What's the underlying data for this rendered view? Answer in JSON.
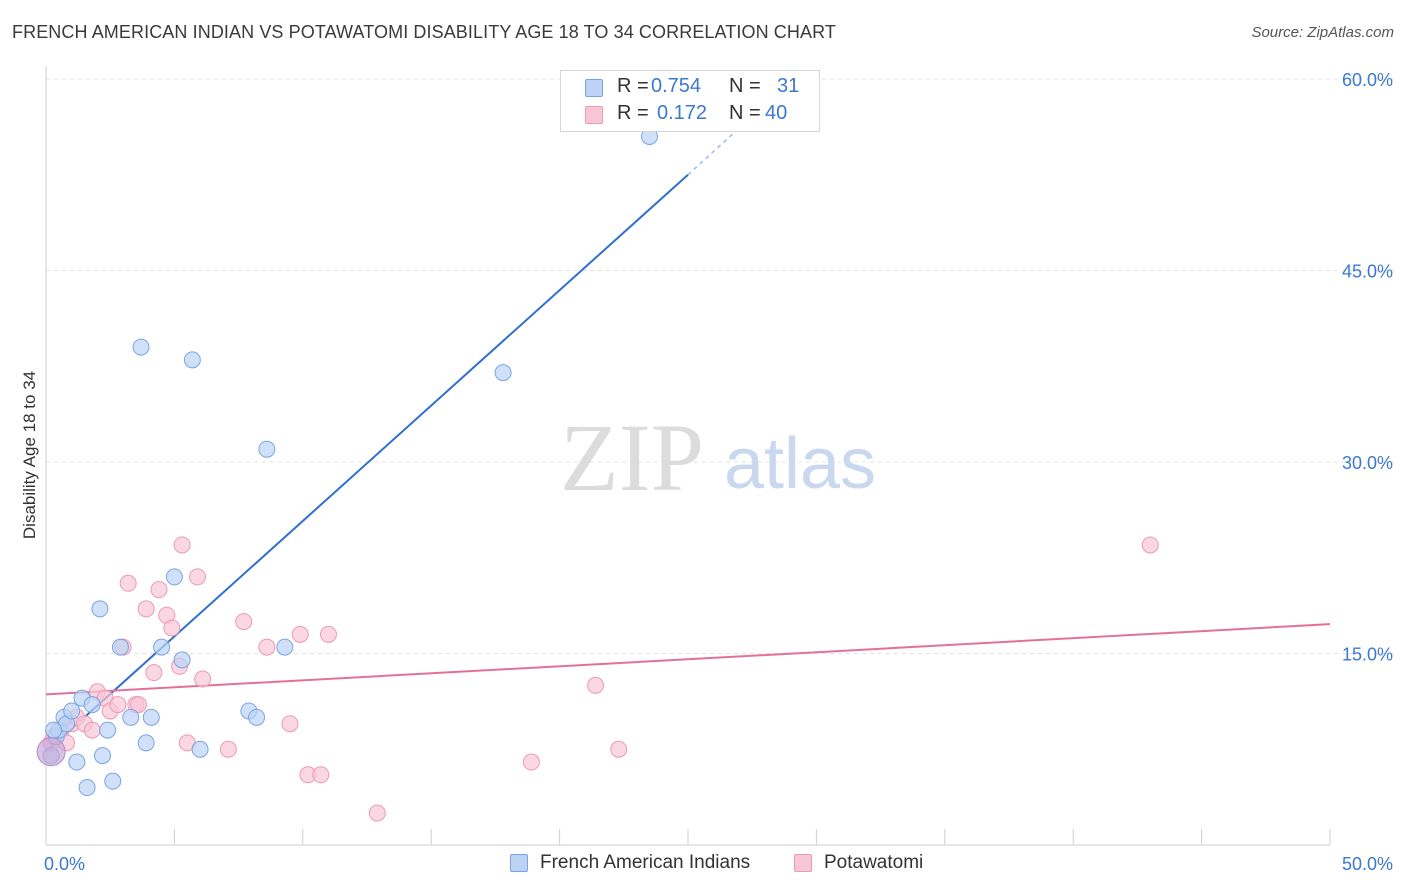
{
  "header": {
    "title": "FRENCH AMERICAN INDIAN VS POTAWATOMI DISABILITY AGE 18 TO 34 CORRELATION CHART",
    "source": "Source: ZipAtlas.com"
  },
  "watermark": {
    "zip": "ZIP",
    "atlas": "atlas"
  },
  "legend_top": [
    {
      "r_label": "R =",
      "r_value": "0.754",
      "n_label": "N =",
      "n_value": "31"
    },
    {
      "r_label": "R =",
      "r_value": "0.172",
      "n_label": "N =",
      "n_value": "40"
    }
  ],
  "legend_bottom": [
    {
      "label": "French American Indians"
    },
    {
      "label": "Potawatomi"
    }
  ],
  "colors": {
    "blue_fill": "#bcd3f5",
    "blue_stroke": "#7aa5e0",
    "blue_line": "#2f6fd0",
    "pink_fill": "#f8c6d5",
    "pink_stroke": "#ec9ab4",
    "pink_line": "#e4709a",
    "tick_label": "#3b78d0",
    "grid": "#e3e3e3"
  },
  "chart_data": {
    "type": "scatter",
    "title": "FRENCH AMERICAN INDIAN VS POTAWATOMI DISABILITY AGE 18 TO 34 CORRELATION CHART",
    "xlabel": "",
    "ylabel": "Disability Age 18 to 34",
    "xlim": [
      0,
      50
    ],
    "ylim": [
      0,
      60
    ],
    "x_tick_labels": [
      "0.0%",
      "50.0%"
    ],
    "y_ticks": [
      15,
      30,
      45,
      60
    ],
    "y_tick_labels": [
      "15.0%",
      "30.0%",
      "45.0%",
      "60.0%"
    ],
    "grid": true,
    "series": [
      {
        "name": "French American Indians",
        "r": 0.754,
        "n": 31,
        "points": [
          [
            0.2,
            7.0
          ],
          [
            0.4,
            8.5
          ],
          [
            0.5,
            9.0
          ],
          [
            0.7,
            10.0
          ],
          [
            0.8,
            9.5
          ],
          [
            1.0,
            10.5
          ],
          [
            1.2,
            6.5
          ],
          [
            1.4,
            11.5
          ],
          [
            1.6,
            4.5
          ],
          [
            1.8,
            11.0
          ],
          [
            2.1,
            18.5
          ],
          [
            2.2,
            7.0
          ],
          [
            2.4,
            9.0
          ],
          [
            2.6,
            5.0
          ],
          [
            2.9,
            15.5
          ],
          [
            3.3,
            10.0
          ],
          [
            3.7,
            39.0
          ],
          [
            3.9,
            8.0
          ],
          [
            4.1,
            10.0
          ],
          [
            4.5,
            15.5
          ],
          [
            5.0,
            21.0
          ],
          [
            5.3,
            14.5
          ],
          [
            5.7,
            38.0
          ],
          [
            6.0,
            7.5
          ],
          [
            7.9,
            10.5
          ],
          [
            8.2,
            10.0
          ],
          [
            8.6,
            31.0
          ],
          [
            9.3,
            15.5
          ],
          [
            17.8,
            37.0
          ],
          [
            23.5,
            55.5
          ],
          [
            0.3,
            9.0
          ]
        ],
        "trend": {
          "x0": 0,
          "y0": 7.3,
          "x1": 25,
          "y1": 52.5,
          "dash_to_x": 28,
          "dash_to_y": 58.0
        }
      },
      {
        "name": "Potawatomi",
        "r": 0.172,
        "n": 40,
        "points": [
          [
            0.2,
            8.0
          ],
          [
            0.4,
            8.5
          ],
          [
            0.6,
            9.0
          ],
          [
            0.8,
            8.0
          ],
          [
            1.0,
            9.5
          ],
          [
            1.2,
            10.0
          ],
          [
            1.5,
            9.5
          ],
          [
            1.8,
            9.0
          ],
          [
            2.0,
            12.0
          ],
          [
            2.3,
            11.5
          ],
          [
            2.5,
            10.5
          ],
          [
            2.8,
            11.0
          ],
          [
            3.0,
            15.5
          ],
          [
            3.2,
            20.5
          ],
          [
            3.5,
            11.0
          ],
          [
            3.6,
            11.0
          ],
          [
            3.9,
            18.5
          ],
          [
            4.2,
            13.5
          ],
          [
            4.4,
            20.0
          ],
          [
            4.7,
            18.0
          ],
          [
            4.9,
            17.0
          ],
          [
            5.2,
            14.0
          ],
          [
            5.3,
            23.5
          ],
          [
            5.5,
            8.0
          ],
          [
            5.9,
            21.0
          ],
          [
            6.1,
            13.0
          ],
          [
            7.1,
            7.5
          ],
          [
            7.7,
            17.5
          ],
          [
            8.6,
            15.5
          ],
          [
            9.5,
            9.5
          ],
          [
            9.9,
            16.5
          ],
          [
            10.2,
            5.5
          ],
          [
            10.7,
            5.5
          ],
          [
            11.0,
            16.5
          ],
          [
            12.9,
            2.5
          ],
          [
            18.9,
            6.5
          ],
          [
            21.4,
            12.5
          ],
          [
            22.3,
            7.5
          ],
          [
            43.0,
            23.5
          ],
          [
            0.3,
            8.5
          ]
        ],
        "trend": {
          "x0": 0,
          "y0": 11.8,
          "x1": 50,
          "y1": 17.3
        }
      }
    ]
  }
}
